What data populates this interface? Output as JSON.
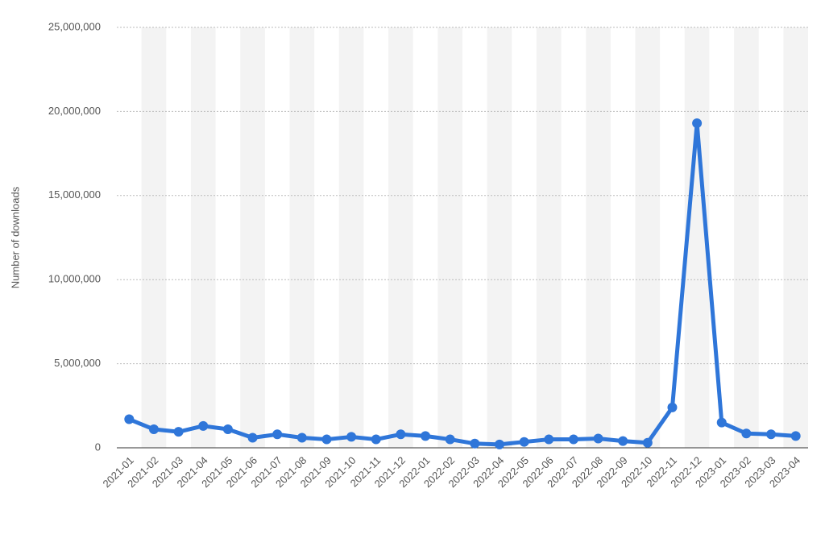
{
  "chart_data": {
    "type": "line",
    "y_label": "Number of downloads",
    "categories": [
      "2021-01",
      "2021-02",
      "2021-03",
      "2021-04",
      "2021-05",
      "2021-06",
      "2021-07",
      "2021-08",
      "2021-09",
      "2021-10",
      "2021-11",
      "2021-12",
      "2022-01",
      "2022-02",
      "2022-03",
      "2022-04",
      "2022-05",
      "2022-06",
      "2022-07",
      "2022-08",
      "2022-09",
      "2022-10",
      "2022-11",
      "2022-12",
      "2023-01",
      "2023-02",
      "2023-03",
      "2023-04"
    ],
    "series": [
      {
        "name": "Downloads",
        "color": "#2f76d9",
        "values": [
          1700000,
          1100000,
          950000,
          1300000,
          1100000,
          600000,
          800000,
          600000,
          500000,
          650000,
          500000,
          800000,
          700000,
          500000,
          250000,
          200000,
          350000,
          500000,
          500000,
          550000,
          400000,
          300000,
          2400000,
          19300000,
          1500000,
          850000,
          800000,
          700000
        ]
      }
    ],
    "ylim": [
      0,
      25000000
    ],
    "yticks": [
      0,
      {
        "value": 5000000,
        "label": "5,000,000"
      },
      {
        "value": 10000000,
        "label": "10,000,000"
      },
      {
        "value": 15000000,
        "label": "15,000,000"
      },
      {
        "value": 20000000,
        "label": "20,000,000"
      },
      {
        "value": 25000000,
        "label": "25,000,000"
      }
    ],
    "grid": true,
    "alternating_bands": true
  }
}
